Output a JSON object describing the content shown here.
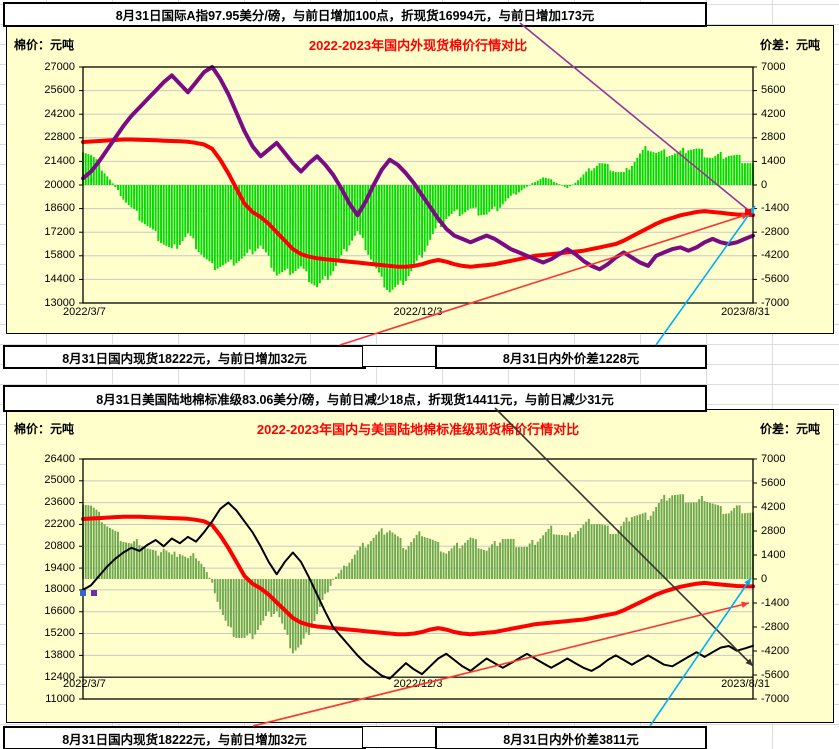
{
  "chart_data": [
    {
      "type": "combo-bar-line",
      "header": "8月31日国际A指97.95美分/磅，与前日增加100点，折现货16994元，与前日增加173元",
      "title": "2022-2023年国内外现货棉价行情对比",
      "unit_left": "棉价：元吨",
      "unit_right": "价差：元吨",
      "footer_left": "8月31日国内现货18222元，与前日增加32元",
      "footer_right": "8月31日内外价差1228元",
      "x_labels": [
        "2022/3/7",
        "2022/12/3",
        "2023/8/31"
      ],
      "left_ylim": [
        13000,
        27000
      ],
      "right_ylim": [
        -7000,
        7000
      ],
      "left_ticks": [
        27000,
        25600,
        24200,
        22800,
        21400,
        20000,
        18600,
        17200,
        15800,
        14400,
        13000
      ],
      "right_ticks": [
        7000,
        5600,
        4200,
        2800,
        1400,
        0,
        -1400,
        -2800,
        -4200,
        -5600,
        -7000
      ],
      "grid": true,
      "legend": "none",
      "series": [
        {
          "name": "国内现货",
          "type": "line",
          "axis": "left",
          "color": "#FF0000",
          "width": 4,
          "values": [
            22550,
            22580,
            22610,
            22640,
            22670,
            22700,
            22700,
            22690,
            22670,
            22650,
            22630,
            22610,
            22590,
            22560,
            22500,
            22400,
            22150,
            21500,
            20700,
            19800,
            18900,
            18400,
            18100,
            17700,
            17200,
            16700,
            16200,
            15900,
            15750,
            15650,
            15600,
            15550,
            15500,
            15450,
            15400,
            15350,
            15300,
            15250,
            15200,
            15150,
            15150,
            15200,
            15300,
            15450,
            15550,
            15450,
            15300,
            15200,
            15150,
            15200,
            15250,
            15300,
            15400,
            15500,
            15600,
            15700,
            15800,
            15850,
            15900,
            15950,
            16000,
            16050,
            16100,
            16200,
            16300,
            16400,
            16500,
            16700,
            16950,
            17200,
            17450,
            17700,
            17900,
            18050,
            18200,
            18300,
            18400,
            18450,
            18400,
            18350,
            18300,
            18250,
            18230,
            18222
          ]
        },
        {
          "name": "国际A指折现货",
          "type": "line",
          "axis": "left",
          "color": "#7A0B85",
          "width": 4,
          "values": [
            20400,
            20800,
            21400,
            22100,
            22800,
            23500,
            24100,
            24600,
            25100,
            25600,
            26100,
            26500,
            26000,
            25500,
            26100,
            26700,
            27000,
            26300,
            25400,
            24300,
            23200,
            22300,
            21700,
            22100,
            22500,
            21900,
            21300,
            20800,
            21300,
            21700,
            21200,
            20600,
            19800,
            18900,
            18200,
            19000,
            20000,
            20900,
            21500,
            21200,
            20700,
            20100,
            19400,
            18700,
            18000,
            17400,
            17000,
            16800,
            16600,
            16800,
            17000,
            16800,
            16500,
            16200,
            16000,
            15800,
            15600,
            15400,
            15600,
            15900,
            16200,
            15900,
            15500,
            15200,
            15000,
            15300,
            15700,
            16000,
            15700,
            15400,
            15200,
            15800,
            16000,
            16200,
            16300,
            16100,
            16300,
            16600,
            16800,
            16600,
            16500,
            16600,
            16800,
            16994
          ]
        },
        {
          "name": "内外价差",
          "type": "bar",
          "axis": "right",
          "color": "#00DC00",
          "values": [
            2150,
            1780,
            1210,
            540,
            -130,
            -800,
            -1400,
            -1910,
            -2430,
            -2950,
            -3470,
            -3890,
            -3410,
            -2940,
            -3600,
            -4300,
            -4850,
            -4800,
            -4700,
            -4500,
            -4300,
            -3900,
            -3600,
            -4400,
            -5300,
            -5200,
            -5100,
            -4900,
            -5550,
            -6050,
            -5600,
            -5050,
            -4300,
            -3450,
            -2800,
            -3650,
            -4700,
            -5650,
            -6300,
            -6050,
            -5550,
            -4900,
            -4100,
            -3250,
            -2450,
            -1950,
            -1700,
            -1600,
            -1450,
            -1600,
            -1750,
            -1500,
            -1100,
            -700,
            -400,
            -100,
            200,
            450,
            300,
            50,
            -200,
            150,
            600,
            1000,
            1300,
            1100,
            800,
            700,
            1250,
            1800,
            2250,
            1900,
            1900,
            1850,
            1900,
            2200,
            2100,
            1850,
            1600,
            1750,
            1800,
            1650,
            1430,
            1228
          ]
        }
      ],
      "callouts": [
        {
          "name": "header-box-to-intl-endpoint",
          "color": "#993399",
          "arrow": false
        },
        {
          "name": "domestic-box-to-endpoint",
          "color": "#FF3333",
          "arrow": true
        },
        {
          "name": "spread-box-to-endpoint",
          "color": "#00B0F0",
          "arrow": true
        }
      ],
      "end_markers": [
        {
          "color": "#FF0000"
        }
      ]
    },
    {
      "type": "combo-bar-line",
      "header": "8月31日美国陆地棉标准级83.06美分/磅，与前日减少18点，折现货14411元，与前日减少31元",
      "title": "2022-2023年国内与美国陆地棉标准级现货棉价行情对比",
      "unit_left": "棉价：元吨",
      "unit_right": "价差：元吨",
      "footer_left": "8月31日国内现货18222元，与前日增加32元",
      "footer_right": "8月31日内外价差3811元",
      "x_labels": [
        "2022/3/7",
        "2022/12/3",
        "2023/8/31"
      ],
      "left_ylim": [
        11000,
        26400
      ],
      "right_ylim": [
        -7000,
        7000
      ],
      "left_ticks": [
        26400,
        25000,
        23600,
        22200,
        20800,
        19400,
        18000,
        16600,
        15200,
        13800,
        12400,
        11000
      ],
      "right_ticks": [
        7000,
        5600,
        4200,
        2800,
        1400,
        0,
        -1400,
        -2800,
        -4200,
        -5600,
        -7000
      ],
      "x_axis_cross": 12400,
      "grid": true,
      "legend": "none",
      "series": [
        {
          "name": "国内现货",
          "type": "line",
          "axis": "left",
          "color": "#FF0000",
          "width": 4,
          "values": [
            22550,
            22580,
            22610,
            22640,
            22670,
            22700,
            22700,
            22690,
            22670,
            22650,
            22630,
            22610,
            22590,
            22560,
            22500,
            22400,
            22150,
            21500,
            20700,
            19800,
            18900,
            18400,
            18100,
            17700,
            17200,
            16700,
            16200,
            15900,
            15750,
            15650,
            15600,
            15550,
            15500,
            15450,
            15400,
            15350,
            15300,
            15250,
            15200,
            15150,
            15150,
            15200,
            15300,
            15450,
            15550,
            15450,
            15300,
            15200,
            15150,
            15200,
            15250,
            15300,
            15400,
            15500,
            15600,
            15700,
            15800,
            15850,
            15900,
            15950,
            16000,
            16050,
            16100,
            16200,
            16300,
            16400,
            16500,
            16700,
            16950,
            17200,
            17450,
            17700,
            17900,
            18050,
            18200,
            18300,
            18400,
            18450,
            18400,
            18350,
            18300,
            18250,
            18230,
            18222
          ]
        },
        {
          "name": "美国陆地棉标准级折现货",
          "type": "line",
          "axis": "left",
          "color": "#000000",
          "width": 2,
          "values": [
            18000,
            18300,
            18900,
            19500,
            20000,
            20400,
            20700,
            20500,
            20900,
            21200,
            20800,
            21300,
            21000,
            21400,
            21100,
            21700,
            22400,
            23200,
            23600,
            23100,
            22400,
            21700,
            20800,
            19800,
            19000,
            19800,
            20400,
            19800,
            18800,
            17700,
            16600,
            15600,
            15000,
            14400,
            13800,
            13300,
            12900,
            12500,
            12300,
            12800,
            13300,
            12900,
            12600,
            13100,
            13600,
            13900,
            13500,
            13100,
            12800,
            13200,
            13600,
            13300,
            13000,
            13300,
            13600,
            13900,
            13600,
            13300,
            13000,
            13300,
            13600,
            13300,
            13000,
            12800,
            13100,
            13500,
            13800,
            13500,
            13200,
            13500,
            13800,
            13500,
            13200,
            13100,
            13400,
            13700,
            14000,
            13700,
            14000,
            14300,
            14400,
            14100,
            14250,
            14411
          ]
        },
        {
          "name": "内外价差",
          "type": "bar",
          "axis": "right",
          "color": "#6FA84F",
          "values": [
            4550,
            4280,
            3710,
            3140,
            2670,
            2300,
            2000,
            2190,
            1770,
            1450,
            1830,
            1310,
            1590,
            1160,
            1400,
            700,
            -250,
            -1700,
            -2900,
            -3300,
            -3500,
            -3300,
            -2700,
            -2100,
            -1800,
            -3100,
            -4200,
            -3900,
            -3050,
            -2050,
            -1000,
            -50,
            500,
            1050,
            1600,
            2050,
            2400,
            2750,
            2900,
            2350,
            1850,
            2300,
            2700,
            2350,
            1950,
            1550,
            1800,
            2100,
            2350,
            2000,
            1650,
            2000,
            2400,
            2200,
            2000,
            1800,
            2200,
            2550,
            2900,
            2650,
            2400,
            2750,
            3100,
            3400,
            3200,
            2900,
            2700,
            3200,
            3750,
            3700,
            3650,
            4200,
            4700,
            4950,
            4800,
            4600,
            4400,
            4750,
            4400,
            4050,
            3900,
            4150,
            3980,
            3811
          ]
        }
      ],
      "callouts": [
        {
          "name": "header-box-to-us-endpoint",
          "color": "#333333",
          "arrow": true
        },
        {
          "name": "domestic-box-to-endpoint",
          "color": "#FF3333",
          "arrow": true
        },
        {
          "name": "spread-box-to-endpoint",
          "color": "#00B0F0",
          "arrow": true
        }
      ],
      "start_markers": [
        {
          "color": "#3366CC"
        },
        {
          "color": "#7030A0"
        }
      ]
    }
  ],
  "style_colors": {
    "chart_background": "#FFFFCC",
    "gridline": "#C8C8C8",
    "sheet_gridline": "#DCDCDC"
  }
}
